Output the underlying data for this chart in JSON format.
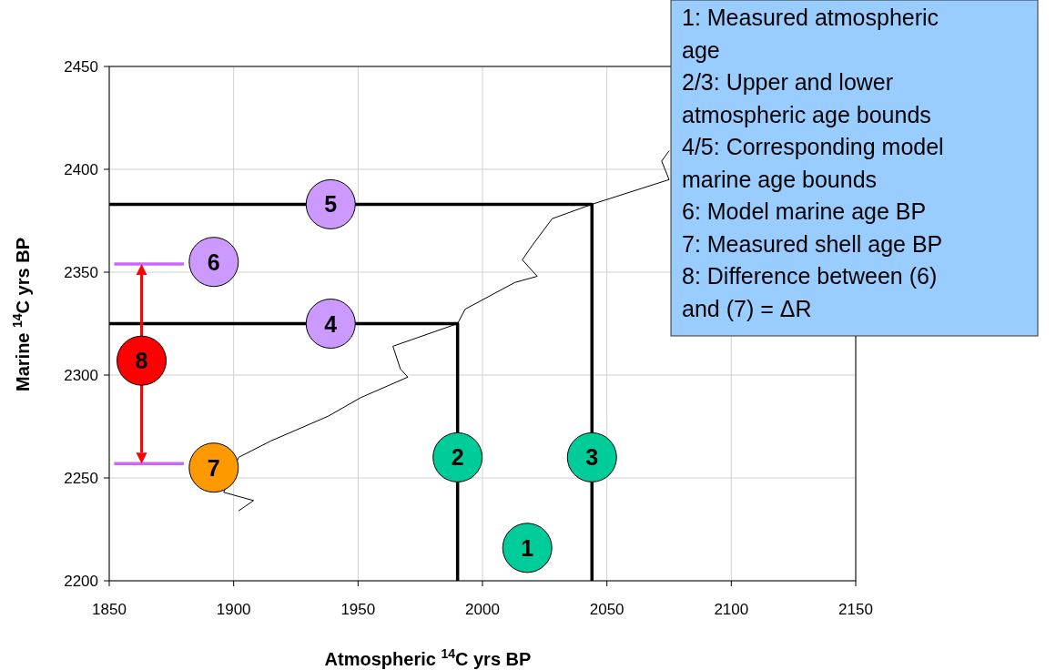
{
  "chart_data": {
    "type": "line",
    "xlabel": "Atmospheric $^{14}$C yrs BP",
    "ylabel": "Marine $^{14}$C yrs BP",
    "xlim": [
      1850,
      2150
    ],
    "xticks": [
      1850,
      1900,
      1950,
      2000,
      2050,
      2100,
      2150
    ],
    "ylim": [
      2200,
      2450
    ],
    "yticks": [
      2200,
      2250,
      2300,
      2350,
      2400,
      2450
    ],
    "grid": true,
    "series": [
      {
        "color": "#000000",
        "x": [
          1902,
          1908,
          1896,
          1902,
          1915,
          1938,
          1951,
          1970,
          1967,
          1964,
          1990,
          1993,
          2013,
          2022,
          2016,
          2020,
          2028,
          2044,
          2075,
          2072,
          2075
        ],
        "values": [
          2234,
          2239,
          2243,
          2260,
          2268,
          2280,
          2289,
          2299,
          2303,
          2314,
          2325,
          2332,
          2345,
          2348,
          2356,
          2363,
          2376,
          2383,
          2395,
          2404,
          2409
        ]
      },
      {
        "color": "#000000",
        "x": [
          1850,
          1990,
          1990
        ],
        "values": [
          2325,
          2325,
          2200
        ]
      },
      {
        "color": "#000000",
        "x": [
          1850,
          2044,
          2044
        ],
        "values": [
          2383,
          2383,
          2200
        ]
      },
      {
        "color": "#cc66ff",
        "x": [
          1852,
          1880
        ],
        "values": [
          2354,
          2354
        ]
      },
      {
        "color": "#cc66ff",
        "x": [
          1852,
          1880
        ],
        "values": [
          2257,
          2257
        ]
      },
      {
        "type": "scatter",
        "name": "1",
        "color": "#00cc99",
        "x": [
          2018
        ],
        "values": [
          2216
        ]
      },
      {
        "type": "scatter",
        "name": "2",
        "color": "#00cc99",
        "x": [
          1990
        ],
        "values": [
          2260
        ]
      },
      {
        "type": "scatter",
        "name": "3",
        "color": "#00cc99",
        "x": [
          2044
        ],
        "values": [
          2260
        ]
      },
      {
        "type": "scatter",
        "name": "4",
        "color": "#cc99ff",
        "x": [
          1939
        ],
        "values": [
          2325
        ]
      },
      {
        "type": "scatter",
        "name": "5",
        "color": "#cc99ff",
        "x": [
          1939
        ],
        "values": [
          2383
        ]
      },
      {
        "type": "scatter",
        "name": "6",
        "color": "#cc99ff",
        "x": [
          1892
        ],
        "values": [
          2355
        ]
      },
      {
        "type": "scatter",
        "name": "7",
        "color": "#ff9900",
        "x": [
          1892
        ],
        "values": [
          2255
        ]
      },
      {
        "type": "scatter",
        "name": "8",
        "color": "#ff0000",
        "x": [
          1863
        ],
        "values": [
          2307
        ]
      }
    ],
    "annotations": [
      "1: Measured atmospheric age",
      "2/3: Upper and lower atmospheric age bounds",
      "4/5: Corresponding model marine age bounds",
      "6: Model marine age BP",
      "7: Measured shell age BP",
      "8: Difference between (6) and (7) = ΔR"
    ]
  }
}
